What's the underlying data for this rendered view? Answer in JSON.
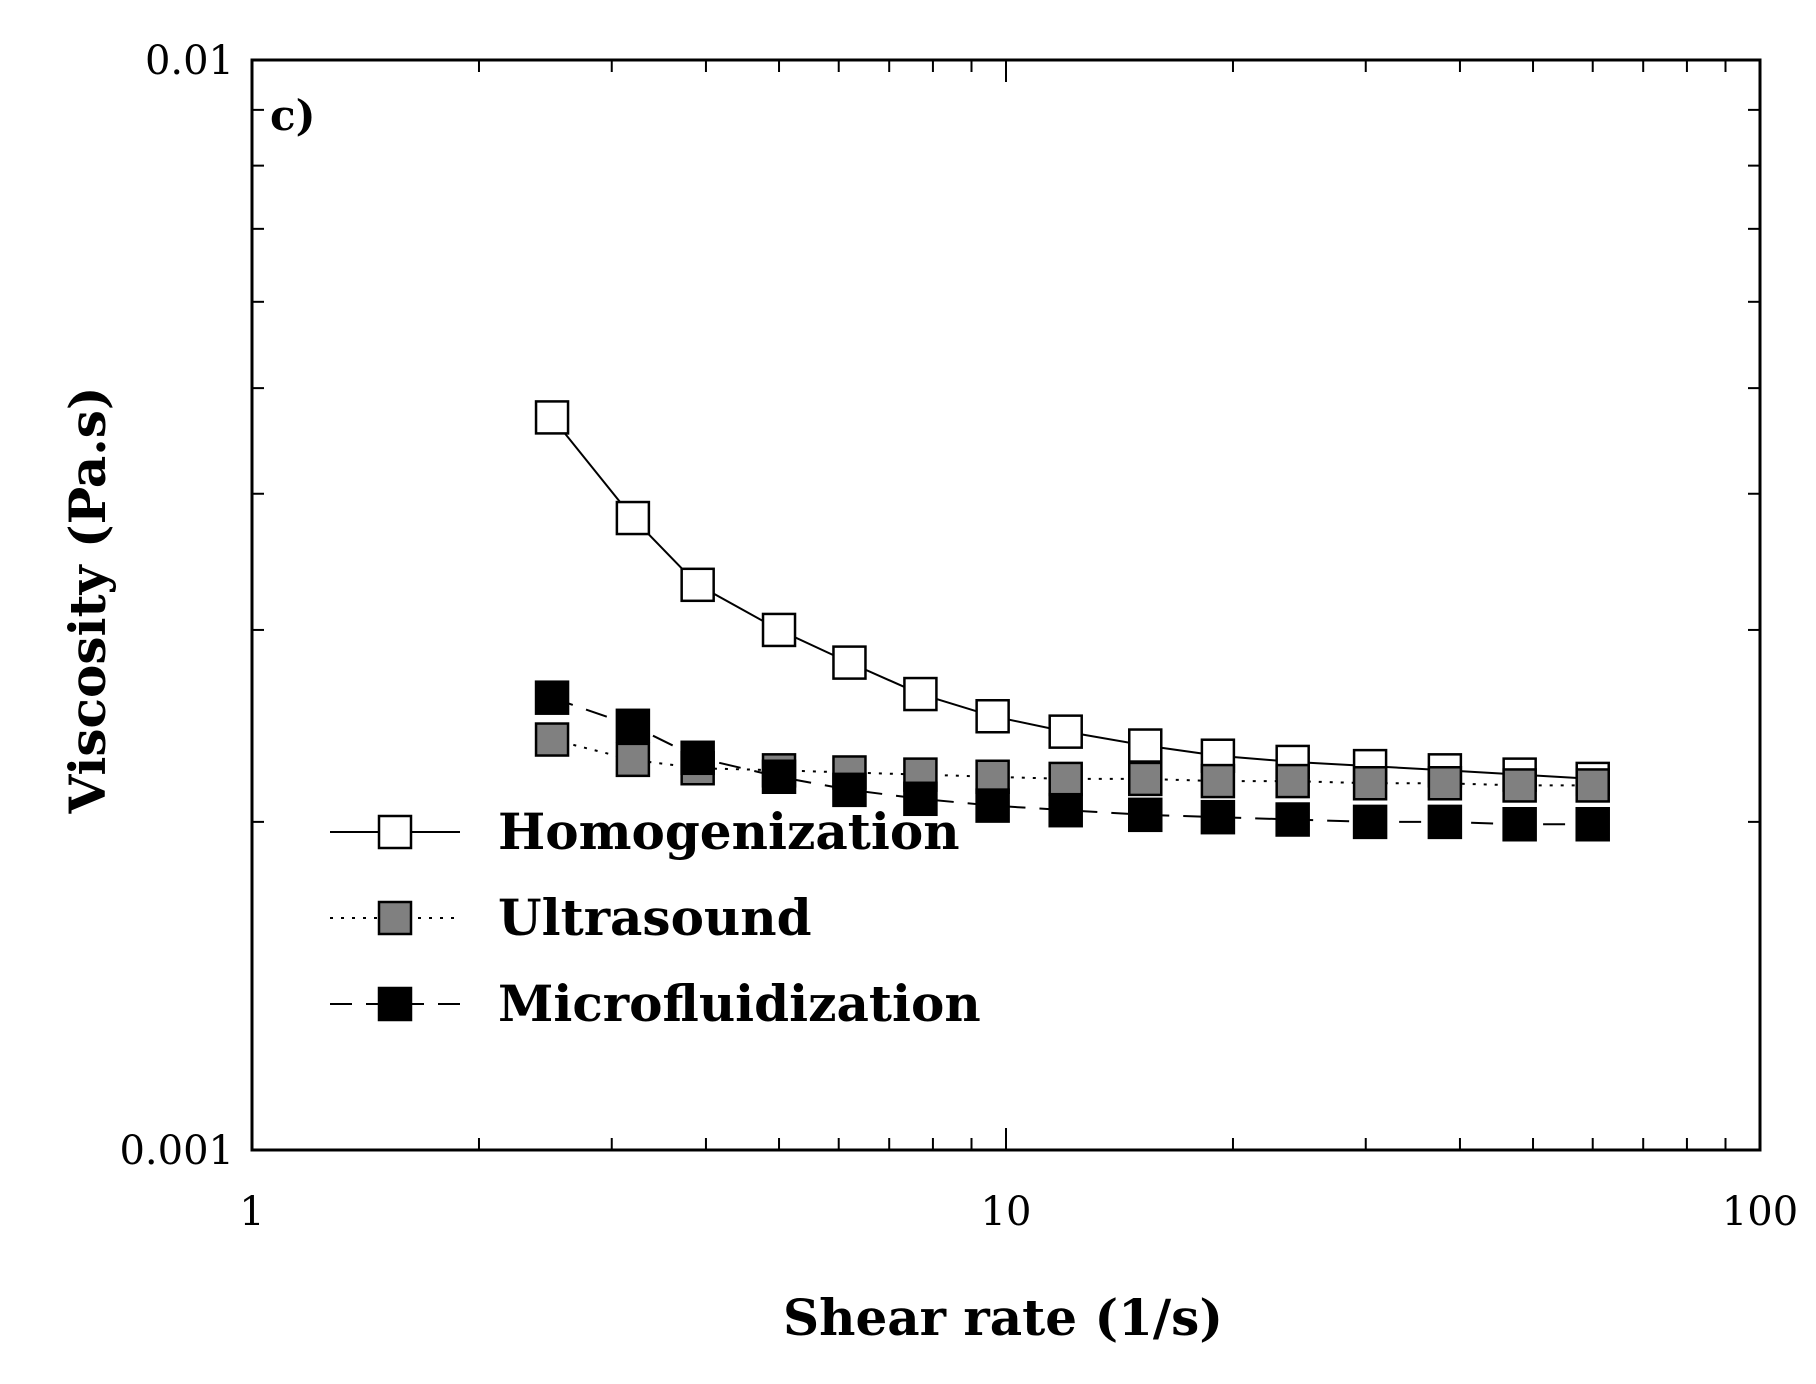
{
  "chart_data": {
    "type": "scatter",
    "panel_label": "c)",
    "xlabel": "Shear rate (1/s)",
    "ylabel": "Viscosity (Pa.s)",
    "xscale": "log",
    "yscale": "log",
    "xlim": [
      1,
      100
    ],
    "ylim": [
      0.001,
      0.01
    ],
    "x_ticks": [
      {
        "value": 1,
        "label": "1"
      },
      {
        "value": 10,
        "label": "10"
      },
      {
        "value": 100,
        "label": "100"
      }
    ],
    "y_ticks": [
      {
        "value": 0.001,
        "label": "0.001"
      },
      {
        "value": 0.01,
        "label": "0.01"
      }
    ],
    "legend_position": "bottom-left",
    "series": [
      {
        "name": "Homogenization",
        "marker": "square",
        "fill": "#ffffff",
        "line_style": "solid",
        "x": [
          2.5,
          3.2,
          3.9,
          5.0,
          6.2,
          7.7,
          9.6,
          12.0,
          15.3,
          19.1,
          24.0,
          30.4,
          38.2,
          48.0,
          60.0
        ],
        "y": [
          0.0047,
          0.0038,
          0.0033,
          0.003,
          0.0028,
          0.00262,
          0.0025,
          0.00242,
          0.00235,
          0.0023,
          0.00227,
          0.00225,
          0.00223,
          0.00221,
          0.00219
        ]
      },
      {
        "name": "Ultrasound",
        "marker": "square",
        "fill": "#808080",
        "line_style": "dotted",
        "x": [
          2.5,
          3.2,
          3.9,
          5.0,
          6.2,
          7.7,
          9.6,
          12.0,
          15.3,
          19.1,
          24.0,
          30.4,
          38.2,
          48.0,
          60.0
        ],
        "y": [
          0.00238,
          0.00228,
          0.00224,
          0.00223,
          0.00222,
          0.00221,
          0.0022,
          0.00219,
          0.00219,
          0.00218,
          0.00218,
          0.00217,
          0.00217,
          0.00216,
          0.00216
        ]
      },
      {
        "name": "Microfluidization",
        "marker": "square",
        "fill": "#000000",
        "line_style": "dashed",
        "x": [
          2.5,
          3.2,
          3.9,
          5.0,
          6.2,
          7.7,
          9.6,
          12.0,
          15.3,
          19.1,
          24.0,
          30.4,
          38.2,
          48.0,
          60.0
        ],
        "y": [
          0.0026,
          0.00245,
          0.00229,
          0.0022,
          0.00214,
          0.0021,
          0.00207,
          0.00205,
          0.00203,
          0.00202,
          0.00201,
          0.002,
          0.002,
          0.00199,
          0.00199
        ]
      }
    ]
  }
}
